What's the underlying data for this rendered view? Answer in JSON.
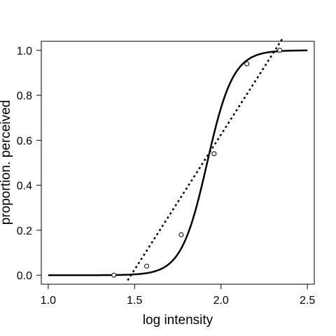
{
  "chart_data": {
    "type": "scatter",
    "title": "",
    "xlabel": "log intensity",
    "ylabel": "proportion. perceived",
    "xlim": [
      0.96,
      2.54
    ],
    "ylim": [
      -0.04,
      1.04
    ],
    "x_ticks": [
      1.0,
      1.5,
      2.0,
      2.5
    ],
    "x_tick_labels": [
      "1.0",
      "1.5",
      "2.0",
      "2.5"
    ],
    "y_ticks": [
      0.0,
      0.2,
      0.4,
      0.6,
      0.8,
      1.0
    ],
    "y_tick_labels": [
      "0.0",
      "0.2",
      "0.4",
      "0.6",
      "0.8",
      "1.0"
    ],
    "grid": false,
    "points": {
      "marker": "open-circle",
      "x": [
        1.38,
        1.57,
        1.77,
        1.96,
        2.15,
        2.34
      ],
      "y": [
        0.0,
        0.04,
        0.18,
        0.54,
        0.94,
        1.0
      ]
    },
    "curves": [
      {
        "kind": "logistic",
        "style": "solid",
        "midpoint": 1.92,
        "scale": 0.075,
        "x_range": [
          1.0,
          2.5
        ]
      },
      {
        "kind": "linear",
        "style": "dotted",
        "slope": 1.2,
        "intercept": -1.775,
        "x_range": [
          1.46,
          2.36
        ]
      }
    ]
  }
}
